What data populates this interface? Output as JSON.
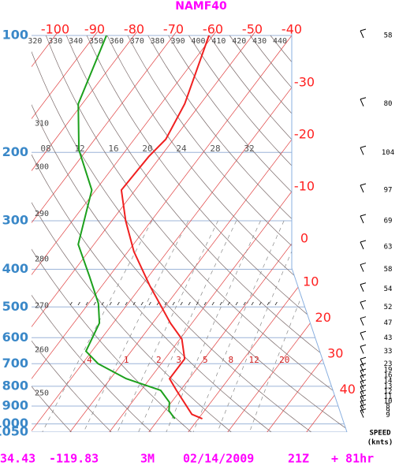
{
  "chart_data": {
    "type": "skew-t",
    "title": "NAMF40",
    "log_y": true,
    "ylim": [
      1050,
      100
    ],
    "yticks": [
      100,
      200,
      300,
      400,
      500,
      600,
      700,
      800,
      900,
      1000,
      1050
    ],
    "xlim": [
      -106,
      -40
    ],
    "xticks": [
      -100,
      -90,
      -80,
      -70,
      -60,
      -50,
      -40,
      -30,
      -20,
      -10,
      0,
      10,
      20,
      30,
      40
    ],
    "theta_left": [
      310,
      300,
      290,
      280,
      270,
      260,
      250
    ],
    "theta_top": [
      320,
      330,
      340,
      350,
      360,
      370,
      380,
      390,
      400,
      410,
      420,
      430,
      440
    ],
    "mixing_ratio_ticks": [
      {
        "value": 0.4,
        "label": ".4"
      },
      1,
      2,
      3,
      5,
      8,
      12,
      20
    ],
    "upper_labels": [
      "08",
      "12",
      "16",
      "20",
      "24",
      "28",
      "32"
    ],
    "series": [
      {
        "color": "#f02020",
        "pressure": [
          100,
          150,
          185,
          205,
          250,
          300,
          360,
          440,
          550,
          605,
          680,
          765,
          820,
          945,
          970
        ],
        "values": [
          -61,
          -54,
          -52,
          -53,
          -53.5,
          -46.5,
          -38.5,
          -28,
          -15.5,
          -9.5,
          -5,
          -5,
          -1,
          7.5,
          11
        ]
      },
      {
        "color": "#1ca01c",
        "pressure": [
          100,
          150,
          197,
          250,
          345,
          417,
          490,
          550,
          650,
          700,
          765,
          820,
          880,
          925,
          970
        ],
        "values": [
          -87,
          -81,
          -72,
          -61,
          -54,
          -45,
          -37.5,
          -33.5,
          -31.5,
          -26,
          -16,
          -5,
          -0.5,
          1,
          4
        ]
      }
    ],
    "winds": {
      "pressure": [
        100,
        150,
        200,
        250,
        300,
        350,
        400,
        450,
        500,
        550,
        600,
        650,
        700,
        725,
        750,
        775,
        800,
        825,
        850,
        875,
        900,
        925,
        950
      ],
      "speeds": [
        58,
        80,
        104,
        97,
        69,
        63,
        58,
        54,
        52,
        47,
        43,
        33,
        23,
        19,
        16,
        14,
        13,
        12,
        11,
        10,
        8,
        9,
        9
      ]
    },
    "speed_label": "SPEED",
    "speed_unit": "(knts)",
    "footer": {
      "lat": "34.43",
      "lon": "-119.83",
      "station": "3M",
      "date": "02/14/2009",
      "time": "21Z",
      "forecast": "+ 81hr"
    }
  }
}
